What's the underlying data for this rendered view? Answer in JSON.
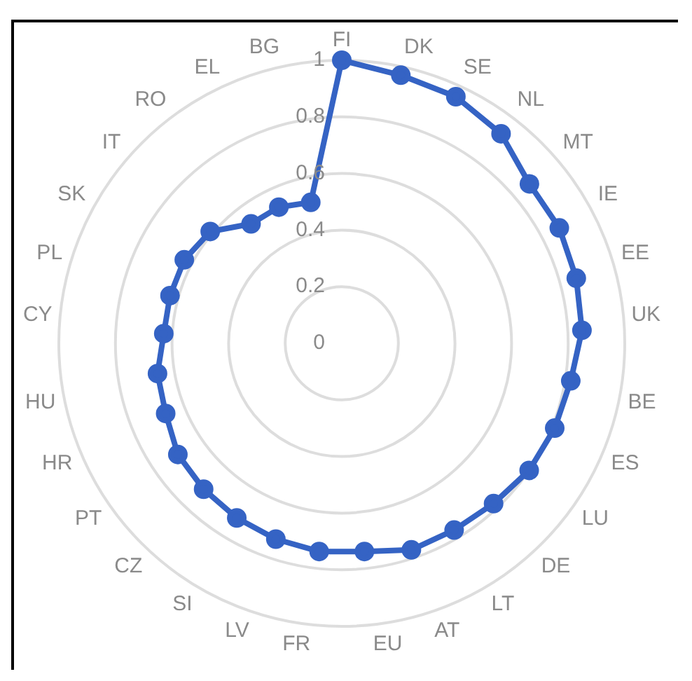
{
  "chart_data": {
    "type": "radar",
    "categories": [
      "FI",
      "DK",
      "SE",
      "NL",
      "MT",
      "IE",
      "EE",
      "UK",
      "BE",
      "ES",
      "LU",
      "DE",
      "LT",
      "AT",
      "EU",
      "FR",
      "LV",
      "SI",
      "CZ",
      "PT",
      "HR",
      "HU",
      "CY",
      "PL",
      "SK",
      "IT",
      "RO",
      "EL",
      "BG"
    ],
    "series": [
      {
        "color": "#3563c4",
        "values": [
          1.0,
          0.97,
          0.96,
          0.93,
          0.87,
          0.87,
          0.86,
          0.85,
          0.82,
          0.81,
          0.8,
          0.78,
          0.77,
          0.77,
          0.74,
          0.74,
          0.73,
          0.72,
          0.71,
          0.7,
          0.67,
          0.66,
          0.63,
          0.63,
          0.63,
          0.61,
          0.53,
          0.53,
          0.51
        ]
      }
    ],
    "ylim": [
      0,
      1
    ],
    "yticks": [
      0,
      0.2,
      0.4,
      0.6,
      0.8,
      1
    ],
    "grid": true,
    "legend": false,
    "marker": "circle"
  }
}
